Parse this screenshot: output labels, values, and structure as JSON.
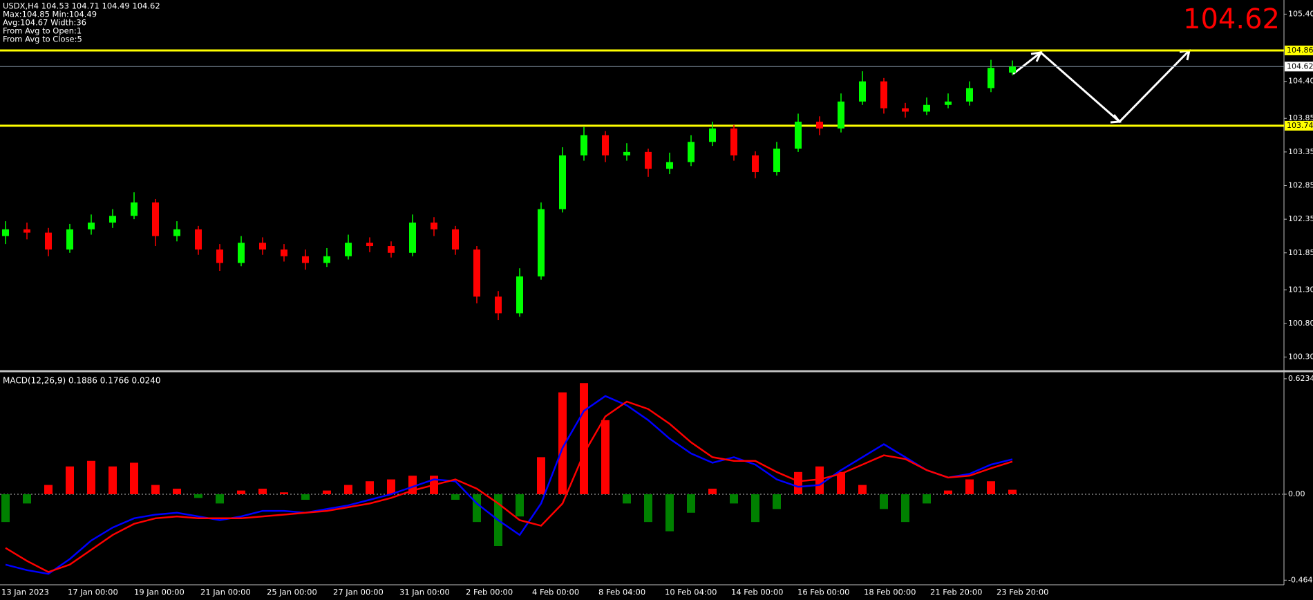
{
  "chart_data": {
    "type": "candlestick",
    "info_lines": [
      "USDX,H4  104.53 104.71 104.49 104.62",
      "Max:104.85 Min:104.49",
      "Avg:104.67 Width:36",
      "From Avg to Open:1",
      "From Avg to Close:5"
    ],
    "last_price": 104.62,
    "up_color": "#00ff00",
    "down_color": "#ff0000",
    "time_labels": [
      "13 Jan 2023",
      "17 Jan 00:00",
      "19 Jan 00:00",
      "21 Jan 00:00",
      "25 Jan 00:00",
      "27 Jan 00:00",
      "31 Jan 00:00",
      "2 Feb 00:00",
      "4 Feb 00:00",
      "8 Feb 04:00",
      "10 Feb 04:00",
      "14 Feb 00:00",
      "16 Feb 00:00",
      "18 Feb 00:00",
      "21 Feb 20:00",
      "23 Feb 20:00"
    ],
    "open": [
      102.1,
      102.2,
      102.15,
      101.9,
      102.2,
      102.3,
      102.4,
      102.6,
      102.1,
      102.2,
      101.9,
      101.7,
      102.0,
      101.9,
      101.8,
      101.7,
      101.8,
      102.0,
      101.95,
      101.85,
      102.3,
      102.2,
      101.9,
      101.2,
      100.95,
      101.5,
      102.5,
      103.3,
      103.6,
      103.3,
      103.35,
      103.1,
      103.2,
      103.5,
      103.7,
      103.3,
      103.05,
      103.4,
      103.8,
      103.7,
      104.1,
      104.4,
      104.0,
      103.95,
      104.05,
      104.1,
      104.3,
      104.53
    ],
    "high": [
      102.32,
      102.3,
      102.22,
      102.28,
      102.42,
      102.5,
      102.75,
      102.65,
      102.32,
      102.25,
      101.98,
      102.1,
      102.08,
      101.98,
      101.9,
      101.92,
      102.12,
      102.08,
      102.02,
      102.42,
      102.38,
      102.25,
      101.95,
      101.28,
      101.62,
      102.6,
      103.42,
      103.72,
      103.66,
      103.48,
      103.4,
      103.34,
      103.6,
      103.8,
      103.75,
      103.36,
      103.5,
      103.92,
      103.88,
      104.22,
      104.55,
      104.45,
      104.08,
      104.16,
      104.22,
      104.4,
      104.72,
      104.71
    ],
    "low": [
      101.98,
      102.05,
      101.8,
      101.85,
      102.12,
      102.22,
      102.35,
      101.95,
      102.02,
      101.82,
      101.58,
      101.65,
      101.82,
      101.72,
      101.6,
      101.64,
      101.75,
      101.86,
      101.78,
      101.8,
      102.1,
      101.82,
      101.1,
      100.85,
      100.9,
      101.45,
      102.45,
      103.22,
      103.2,
      103.22,
      102.98,
      103.02,
      103.14,
      103.44,
      103.22,
      102.96,
      103.0,
      103.35,
      103.6,
      103.64,
      104.05,
      103.92,
      103.86,
      103.9,
      104.0,
      104.04,
      104.24,
      104.49
    ],
    "close": [
      102.2,
      102.15,
      101.9,
      102.2,
      102.3,
      102.4,
      102.6,
      102.1,
      102.2,
      101.9,
      101.7,
      102.0,
      101.9,
      101.8,
      101.7,
      101.8,
      102.0,
      101.95,
      101.85,
      102.3,
      102.2,
      101.9,
      101.2,
      100.95,
      101.5,
      102.5,
      103.3,
      103.6,
      103.3,
      103.35,
      103.1,
      103.2,
      103.5,
      103.7,
      103.3,
      103.05,
      103.4,
      103.8,
      103.7,
      104.1,
      104.4,
      104.0,
      103.95,
      104.05,
      104.1,
      104.3,
      104.6,
      104.62
    ],
    "ylim": [
      100.1,
      105.61
    ],
    "yticks": [
      {
        "value": 105.4,
        "label": "105.40"
      },
      {
        "value": 104.4,
        "label": "104.40"
      },
      103.85,
      103.35,
      102.85,
      102.35,
      101.85,
      {
        "value": 101.3,
        "label": "101.30"
      },
      {
        "value": 100.8,
        "label": "100.80"
      },
      {
        "value": 100.3,
        "label": "100.30"
      }
    ],
    "levels": [
      {
        "value": 104.86,
        "color": "#ffff00"
      },
      {
        "value": 103.74,
        "color": "#ffff00"
      }
    ],
    "indicator": {
      "title": "MACD(12,26,9) 0.1886 0.1766 0.0240",
      "hist_up_color": "#ff0000",
      "hist_down_color": "#008000",
      "histogram": [
        -0.15,
        -0.05,
        0.05,
        0.15,
        0.18,
        0.15,
        0.17,
        0.05,
        0.03,
        -0.02,
        -0.05,
        0.02,
        0.03,
        0.01,
        -0.03,
        0.02,
        0.05,
        0.07,
        0.08,
        0.1,
        0.1,
        -0.03,
        -0.15,
        -0.28,
        -0.12,
        0.2,
        0.55,
        0.6,
        0.4,
        -0.05,
        -0.15,
        -0.2,
        -0.1,
        0.03,
        -0.05,
        -0.15,
        -0.08,
        0.12,
        0.15,
        0.12,
        0.05,
        -0.08,
        -0.15,
        -0.05,
        0.02,
        0.08,
        0.07,
        0.024
      ],
      "main": {
        "color": "#0000ff",
        "values": [
          -0.38,
          -0.41,
          -0.43,
          -0.35,
          -0.25,
          -0.18,
          -0.13,
          -0.11,
          -0.1,
          -0.12,
          -0.14,
          -0.12,
          -0.09,
          -0.09,
          -0.1,
          -0.08,
          -0.06,
          -0.03,
          0.0,
          0.04,
          0.08,
          0.07,
          -0.05,
          -0.14,
          -0.22,
          -0.05,
          0.25,
          0.45,
          0.53,
          0.48,
          0.4,
          0.3,
          0.22,
          0.17,
          0.2,
          0.16,
          0.08,
          0.04,
          0.05,
          0.13,
          0.2,
          0.27,
          0.2,
          0.13,
          0.09,
          0.11,
          0.16,
          0.1886
        ]
      },
      "signal": {
        "color": "#ff0000",
        "values": [
          -0.29,
          -0.36,
          -0.42,
          -0.38,
          -0.3,
          -0.22,
          -0.16,
          -0.13,
          -0.12,
          -0.13,
          -0.13,
          -0.13,
          -0.12,
          -0.11,
          -0.1,
          -0.09,
          -0.07,
          -0.05,
          -0.02,
          0.02,
          0.05,
          0.08,
          0.03,
          -0.05,
          -0.14,
          -0.17,
          -0.05,
          0.22,
          0.42,
          0.5,
          0.46,
          0.38,
          0.28,
          0.2,
          0.18,
          0.18,
          0.12,
          0.07,
          0.08,
          0.11,
          0.16,
          0.21,
          0.19,
          0.13,
          0.09,
          0.1,
          0.14,
          0.1766
        ]
      },
      "ylim": [
        -0.489,
        0.653
      ],
      "yticks": [
        0.6234,
        {
          "value": 0,
          "label": "0.00"
        },
        -0.464
      ]
    }
  }
}
